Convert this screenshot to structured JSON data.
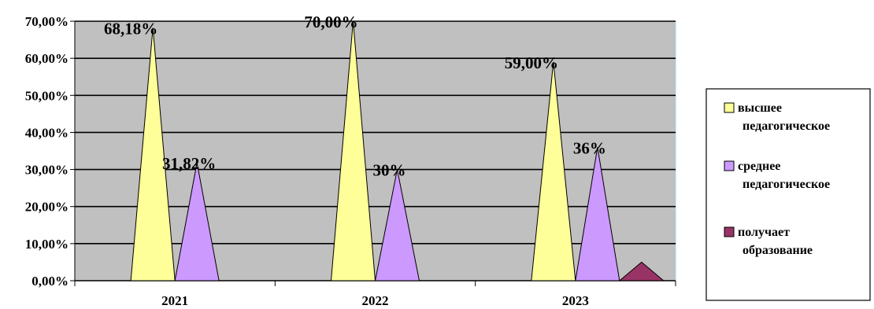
{
  "chart_data": {
    "type": "area",
    "style": "cone",
    "categories": [
      "2021",
      "2022",
      "2023"
    ],
    "ylim": [
      0,
      70
    ],
    "y_ticks": [
      "0,00%",
      "10,00%",
      "20,00%",
      "30,00%",
      "40,00%",
      "50,00%",
      "60,00%",
      "70,00%"
    ],
    "grid": true,
    "legend_position": "right",
    "series": [
      {
        "name": "высшее педагогическое",
        "legend_lines": [
          "высшее",
          "педагогическое"
        ],
        "color": "#FFFF99",
        "values": [
          68.18,
          70.0,
          59.0
        ],
        "labels": [
          "68,18%",
          "70,00%",
          "59,00%"
        ]
      },
      {
        "name": "среднее педагогическое",
        "legend_lines": [
          "среднее",
          "педагогическое"
        ],
        "color": "#CC99FF",
        "values": [
          31.82,
          30.0,
          36.0
        ],
        "labels": [
          "31,82%",
          "30%",
          "36%"
        ]
      },
      {
        "name": "получает образование",
        "legend_lines": [
          "получает",
          "образование"
        ],
        "color": "#993366",
        "values": [
          0,
          0,
          5.0
        ],
        "labels": [
          "",
          "",
          ""
        ]
      }
    ],
    "colors": {
      "plot_background": "#C0C0C0",
      "gridline": "#000000"
    }
  }
}
